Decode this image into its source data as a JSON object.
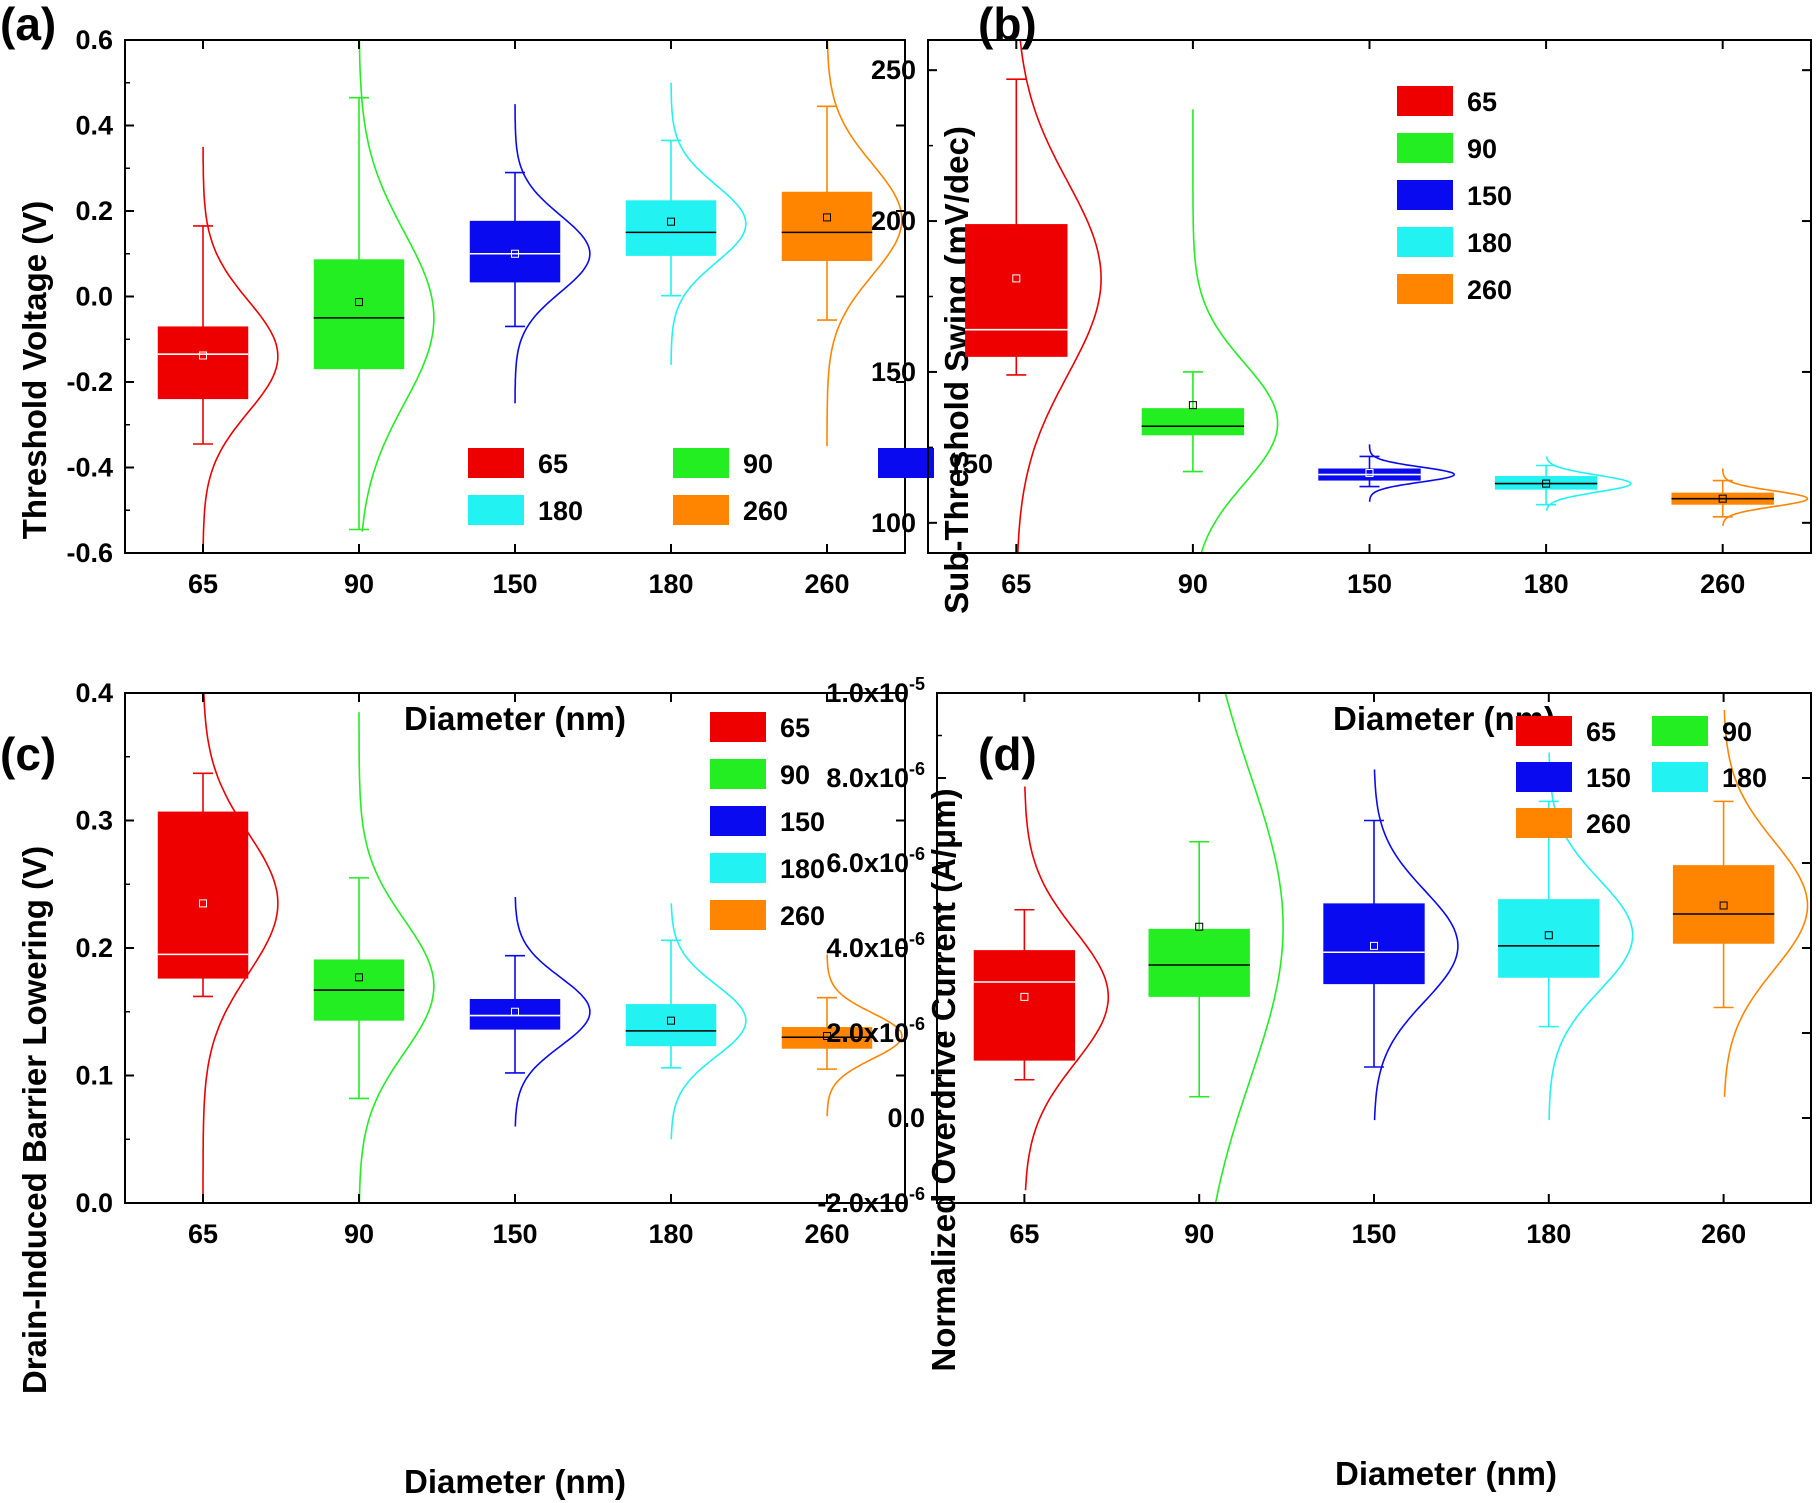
{
  "colors": {
    "65": "#ee0000",
    "90": "#22ee22",
    "150": "#0a0af0",
    "180": "#22f2f2",
    "260": "#ff8500",
    "axis": "#000000",
    "background": "#ffffff"
  },
  "chart_data": [
    {
      "panel": "(a)",
      "type": "box",
      "xlabel": "Diameter (nm)",
      "ylabel": "Threshold Voltage (V)",
      "ylim": [
        -0.6,
        0.6
      ],
      "yticks": [
        -0.6,
        -0.4,
        -0.2,
        0.0,
        0.2,
        0.4,
        0.6
      ],
      "ytick_labels": [
        "-0.6",
        "-0.4",
        "-0.2",
        "0.0",
        "0.2",
        "0.4",
        "0.6"
      ],
      "categories": [
        "65",
        "90",
        "150",
        "180",
        "260"
      ],
      "legend": {
        "placement": "bottom-right",
        "columns": 3
      },
      "series": [
        {
          "name": "65",
          "q1": -0.24,
          "median": -0.135,
          "q3": -0.07,
          "mean": -0.138,
          "whisker_low": -0.345,
          "whisker_high": 0.165,
          "curve_mu": -0.14,
          "curve_sigma": 0.13,
          "curve_range": [
            -0.58,
            0.35
          ]
        },
        {
          "name": "90",
          "q1": -0.17,
          "median": -0.05,
          "q3": 0.087,
          "mean": -0.013,
          "whisker_low": -0.545,
          "whisker_high": 0.465,
          "curve_mu": -0.05,
          "curve_sigma": 0.2,
          "curve_range": [
            -0.55,
            0.6
          ]
        },
        {
          "name": "150",
          "q1": 0.033,
          "median": 0.1,
          "q3": 0.177,
          "mean": 0.1,
          "whisker_low": -0.07,
          "whisker_high": 0.29,
          "curve_mu": 0.1,
          "curve_sigma": 0.09,
          "curve_range": [
            -0.25,
            0.45
          ]
        },
        {
          "name": "180",
          "q1": 0.095,
          "median": 0.15,
          "q3": 0.225,
          "mean": 0.175,
          "whisker_low": 0.002,
          "whisker_high": 0.365,
          "curve_mu": 0.17,
          "curve_sigma": 0.09,
          "curve_range": [
            -0.16,
            0.5
          ]
        },
        {
          "name": "260",
          "q1": 0.083,
          "median": 0.15,
          "q3": 0.245,
          "mean": 0.185,
          "whisker_low": -0.055,
          "whisker_high": 0.445,
          "curve_mu": 0.18,
          "curve_sigma": 0.13,
          "curve_range": [
            -0.35,
            0.6
          ]
        }
      ]
    },
    {
      "panel": "(b)",
      "type": "box",
      "xlabel": "Diameter (nm)",
      "ylabel": "Sub-Threshold Swing (mV/dec)",
      "ylim": [
        90,
        260
      ],
      "yticks": [
        100,
        150,
        200,
        250
      ],
      "ytick_labels": [
        "100",
        "150",
        "200",
        "250"
      ],
      "categories": [
        "65",
        "90",
        "150",
        "180",
        "260"
      ],
      "legend": {
        "placement": "top-right",
        "columns": 1
      },
      "series": [
        {
          "name": "65",
          "q1": 155,
          "median": 164,
          "q3": 199,
          "mean": 181,
          "whisker_low": 149,
          "whisker_high": 247,
          "curve_mu": 181,
          "curve_sigma": 32,
          "curve_range": [
            90,
            260
          ]
        },
        {
          "name": "90",
          "q1": 129,
          "median": 132,
          "q3": 138,
          "mean": 139,
          "whisker_low": 117,
          "whisker_high": 150,
          "curve_mu": 133,
          "curve_sigma": 20,
          "curve_range": [
            90,
            237
          ]
        },
        {
          "name": "150",
          "q1": 114,
          "median": 116,
          "q3": 118,
          "mean": 116.5,
          "whisker_low": 112,
          "whisker_high": 122,
          "curve_mu": 116,
          "curve_sigma": 2.5,
          "curve_range": [
            107,
            126
          ]
        },
        {
          "name": "180",
          "q1": 111,
          "median": 113,
          "q3": 115.5,
          "mean": 113,
          "whisker_low": 106,
          "whisker_high": 119,
          "curve_mu": 113,
          "curve_sigma": 2.8,
          "curve_range": [
            104,
            122
          ]
        },
        {
          "name": "260",
          "q1": 106,
          "median": 108,
          "q3": 110,
          "mean": 108,
          "whisker_low": 102,
          "whisker_high": 114,
          "curve_mu": 108,
          "curve_sigma": 2.6,
          "curve_range": [
            99,
            118
          ]
        }
      ]
    },
    {
      "panel": "(c)",
      "type": "box",
      "xlabel": "Diameter (nm)",
      "ylabel": "Drain-Induced Barrier Lowering (V)",
      "ylim": [
        0.0,
        0.4
      ],
      "yticks": [
        0.0,
        0.1,
        0.2,
        0.3,
        0.4
      ],
      "ytick_labels": [
        "0.0",
        "0.1",
        "0.2",
        "0.3",
        "0.4"
      ],
      "categories": [
        "65",
        "90",
        "150",
        "180",
        "260"
      ],
      "legend": {
        "placement": "top-right",
        "columns": 1
      },
      "series": [
        {
          "name": "65",
          "q1": 0.176,
          "median": 0.195,
          "q3": 0.307,
          "mean": 0.235,
          "whisker_low": 0.162,
          "whisker_high": 0.337,
          "curve_mu": 0.235,
          "curve_sigma": 0.055,
          "curve_range": [
            0.0,
            0.4
          ]
        },
        {
          "name": "90",
          "q1": 0.143,
          "median": 0.167,
          "q3": 0.191,
          "mean": 0.177,
          "whisker_low": 0.082,
          "whisker_high": 0.255,
          "curve_mu": 0.17,
          "curve_sigma": 0.052,
          "curve_range": [
            0.0,
            0.385
          ]
        },
        {
          "name": "150",
          "q1": 0.136,
          "median": 0.147,
          "q3": 0.16,
          "mean": 0.15,
          "whisker_low": 0.102,
          "whisker_high": 0.194,
          "curve_mu": 0.15,
          "curve_sigma": 0.027,
          "curve_range": [
            0.06,
            0.24
          ]
        },
        {
          "name": "180",
          "q1": 0.123,
          "median": 0.135,
          "q3": 0.156,
          "mean": 0.143,
          "whisker_low": 0.106,
          "whisker_high": 0.206,
          "curve_mu": 0.143,
          "curve_sigma": 0.028,
          "curve_range": [
            0.05,
            0.235
          ]
        },
        {
          "name": "260",
          "q1": 0.121,
          "median": 0.13,
          "q3": 0.138,
          "mean": 0.131,
          "whisker_low": 0.105,
          "whisker_high": 0.161,
          "curve_mu": 0.131,
          "curve_sigma": 0.018,
          "curve_range": [
            0.068,
            0.195
          ]
        }
      ]
    },
    {
      "panel": "(d)",
      "type": "box",
      "xlabel": "Diameter (nm)",
      "ylabel": "Normalized Overdrive Current (A/μm)",
      "ylim": [
        -2e-06,
        1e-05
      ],
      "yticks": [
        -2e-06,
        0.0,
        2e-06,
        4e-06,
        6e-06,
        8e-06,
        1e-05
      ],
      "ytick_labels": [
        {
          "base": "-2.0x10",
          "exp": "-6"
        },
        {
          "base": "0.0",
          "exp": ""
        },
        {
          "base": "2.0x10",
          "exp": "-6"
        },
        {
          "base": "4.0x10",
          "exp": "-6"
        },
        {
          "base": "6.0x10",
          "exp": "-6"
        },
        {
          "base": "8.0x10",
          "exp": "-6"
        },
        {
          "base": "1.0x10",
          "exp": "-5"
        }
      ],
      "categories": [
        "65",
        "90",
        "150",
        "180",
        "260"
      ],
      "legend": {
        "placement": "top-right",
        "columns": 2
      },
      "series": [
        {
          "name": "65",
          "q1": 1.35e-06,
          "median": 3.2e-06,
          "q3": 3.95e-06,
          "mean": 2.85e-06,
          "whisker_low": 9e-07,
          "whisker_high": 4.9e-06,
          "curve_mu": 2.85e-06,
          "curve_sigma": 1.55e-06,
          "curve_range": [
            -1.7e-06,
            7.8e-06
          ]
        },
        {
          "name": "90",
          "q1": 2.85e-06,
          "median": 3.6e-06,
          "q3": 4.45e-06,
          "mean": 4.5e-06,
          "whisker_low": 5e-07,
          "whisker_high": 6.5e-06,
          "curve_mu": 4.5e-06,
          "curve_sigma": 3.6e-06,
          "curve_range": [
            -2e-06,
            1e-05
          ]
        },
        {
          "name": "150",
          "q1": 3.15e-06,
          "median": 3.9e-06,
          "q3": 5.05e-06,
          "mean": 4.05e-06,
          "whisker_low": 1.2e-06,
          "whisker_high": 7e-06,
          "curve_mu": 4.05e-06,
          "curve_sigma": 1.3e-06,
          "curve_range": [
            -5e-08,
            8.2e-06
          ]
        },
        {
          "name": "180",
          "q1": 3.3e-06,
          "median": 4.05e-06,
          "q3": 5.15e-06,
          "mean": 4.3e-06,
          "whisker_low": 2.15e-06,
          "whisker_high": 7.45e-06,
          "curve_mu": 4.3e-06,
          "curve_sigma": 1.3e-06,
          "curve_range": [
            -5e-08,
            8.6e-06
          ]
        },
        {
          "name": "260",
          "q1": 4.1e-06,
          "median": 4.8e-06,
          "q3": 5.95e-06,
          "mean": 5e-06,
          "whisker_low": 2.6e-06,
          "whisker_high": 7.45e-06,
          "curve_mu": 5e-06,
          "curve_sigma": 1.5e-06,
          "curve_range": [
            5e-07,
            9.6e-06
          ]
        }
      ]
    }
  ]
}
